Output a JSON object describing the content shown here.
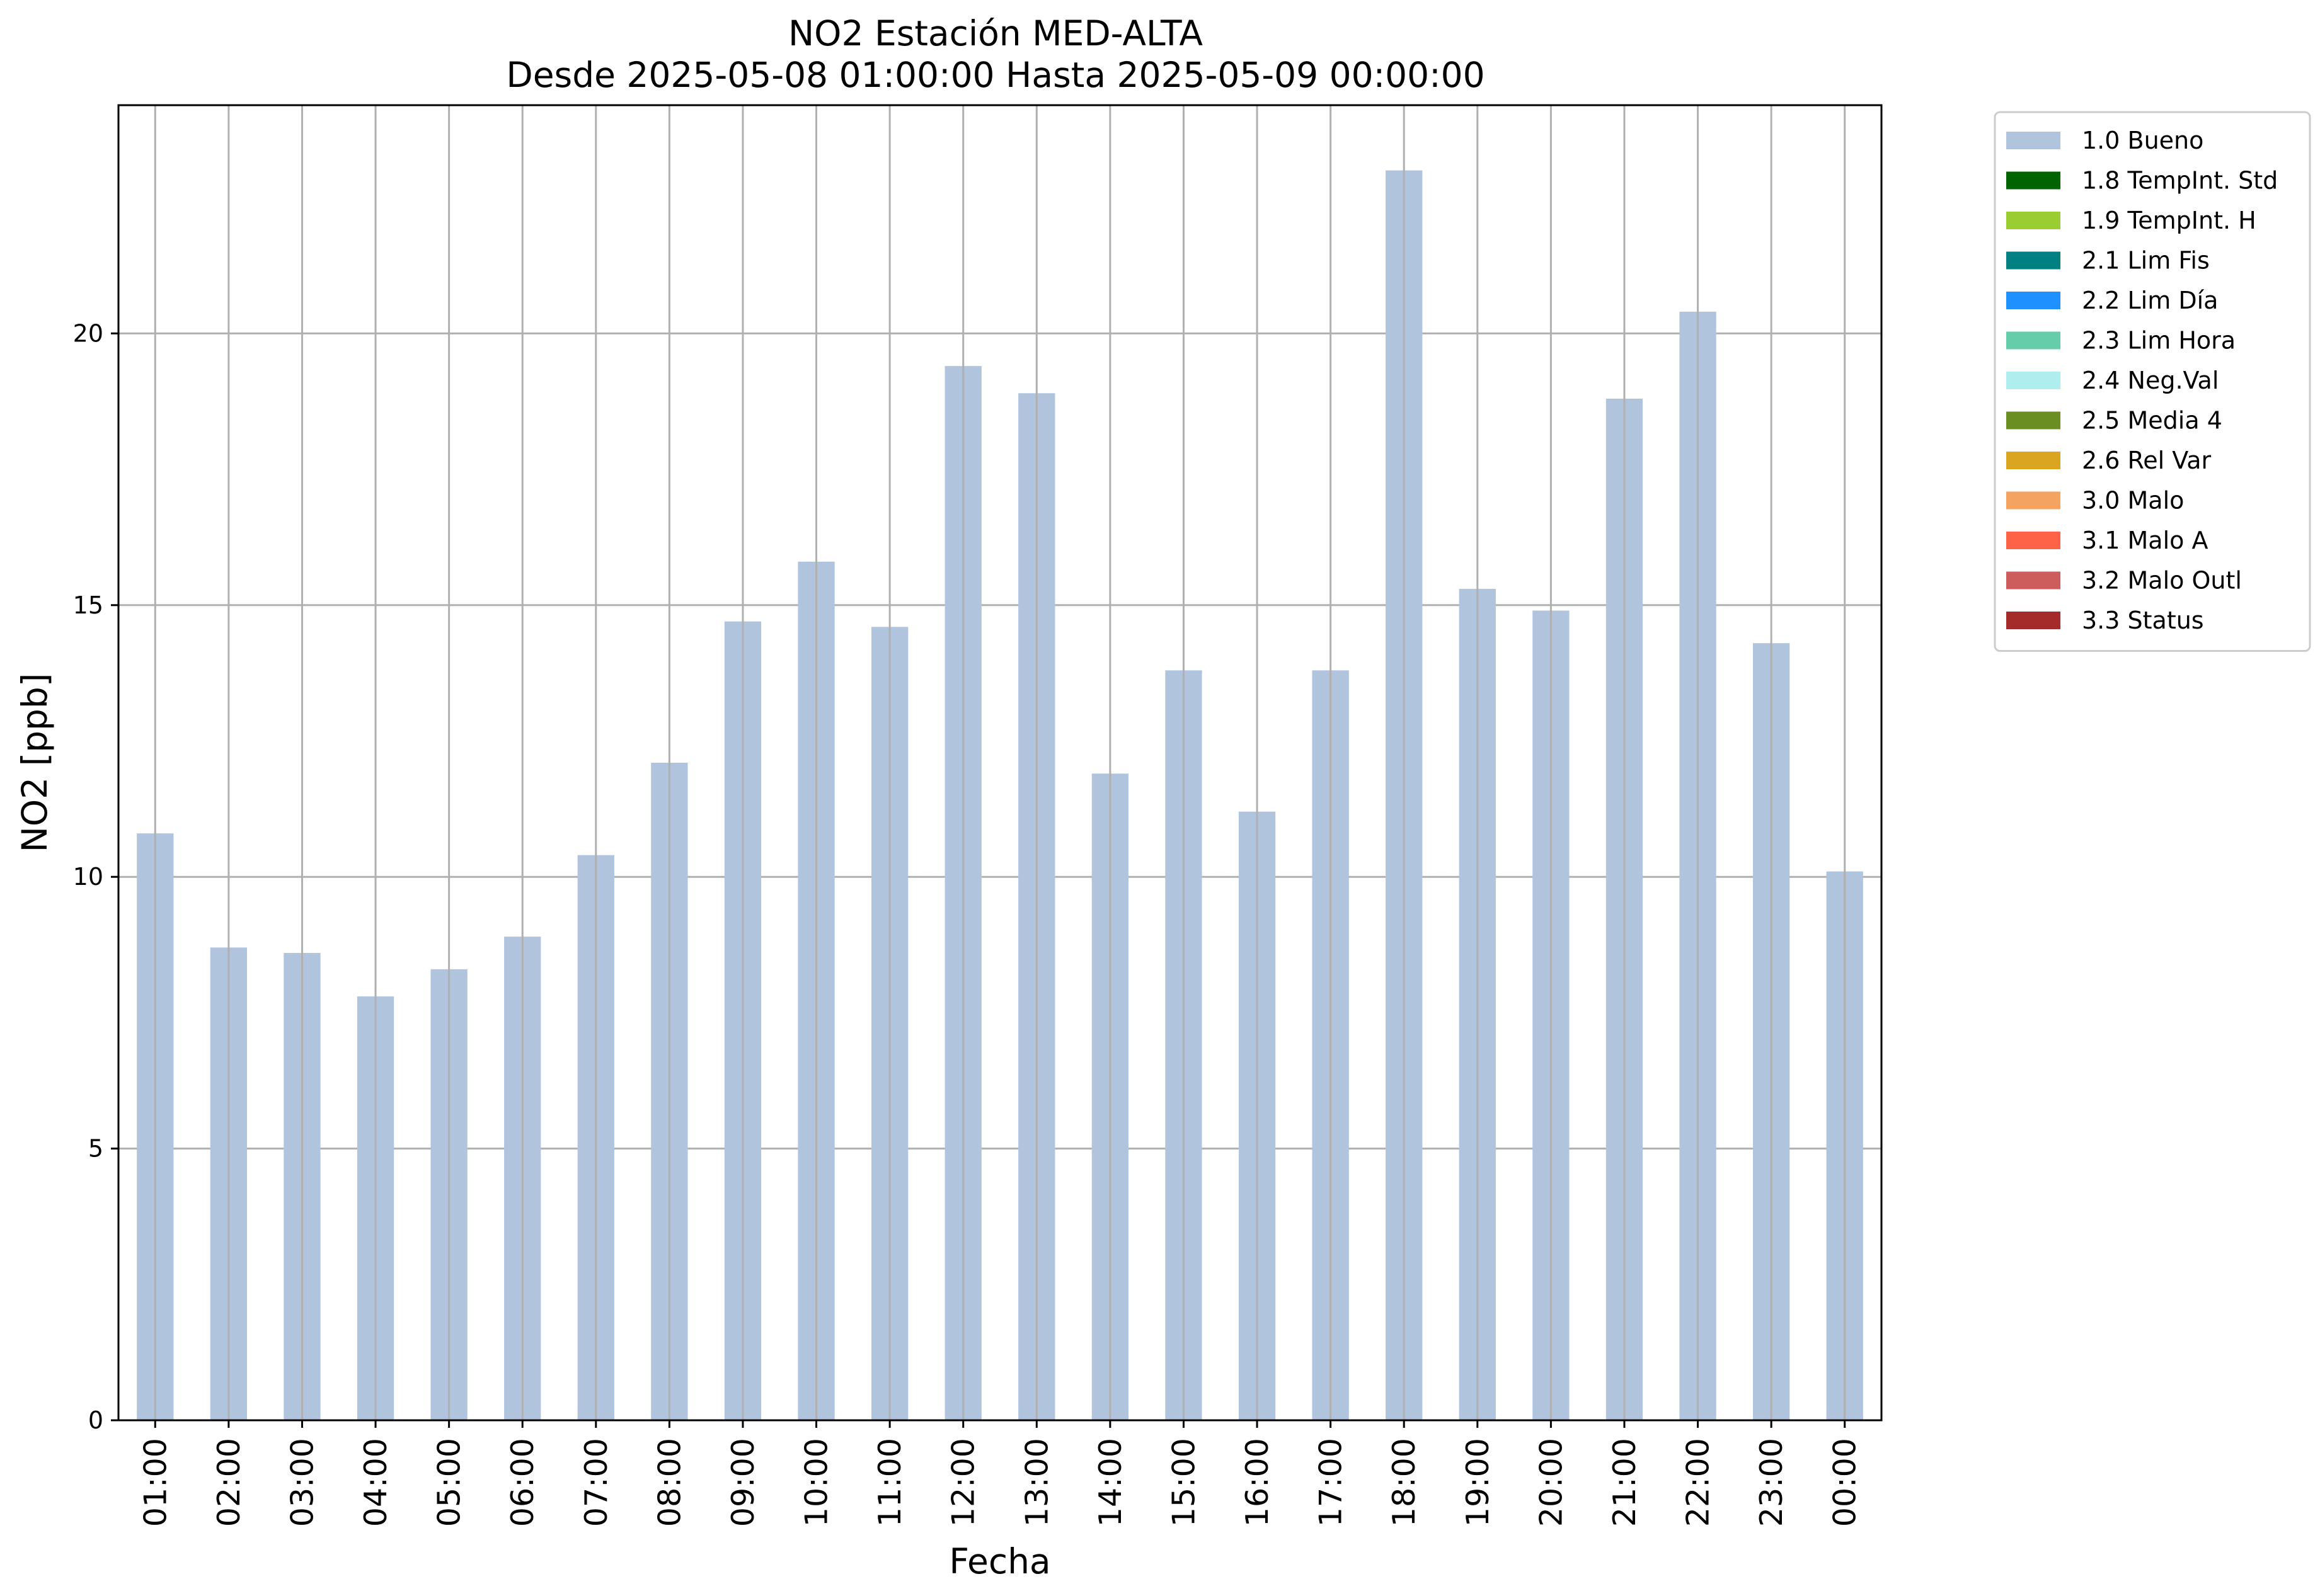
{
  "chart_data": {
    "type": "bar",
    "title": "NO2 Estación MED-ALTA",
    "subtitle": "Desde 2025-05-08 01:00:00 Hasta 2025-05-09 00:00:00",
    "xlabel": "Fecha",
    "ylabel": "NO2 [ppb]",
    "ylim": [
      0,
      24.2
    ],
    "y_ticks": [
      "0",
      "5",
      "10",
      "15",
      "20"
    ],
    "grid": true,
    "legend_position": "outside-right",
    "categories": [
      "01:00",
      "02:00",
      "03:00",
      "04:00",
      "05:00",
      "06:00",
      "07:00",
      "08:00",
      "09:00",
      "10:00",
      "11:00",
      "12:00",
      "13:00",
      "14:00",
      "15:00",
      "16:00",
      "17:00",
      "18:00",
      "19:00",
      "20:00",
      "21:00",
      "22:00",
      "23:00",
      "00:00"
    ],
    "series": [
      {
        "name": "1.0 Bueno",
        "color": "#b0c4de",
        "values": [
          10.8,
          8.7,
          8.6,
          7.8,
          8.3,
          8.9,
          10.4,
          12.1,
          14.7,
          15.8,
          14.6,
          19.4,
          18.9,
          11.9,
          13.8,
          11.2,
          13.8,
          23.0,
          15.3,
          14.9,
          18.8,
          20.4,
          14.3,
          10.1
        ]
      }
    ],
    "legend": [
      {
        "label": "1.0 Bueno",
        "color": "#b0c4de"
      },
      {
        "label": "1.8 TempInt. Std",
        "color": "#006400"
      },
      {
        "label": "1.9 TempInt. H",
        "color": "#9acd32"
      },
      {
        "label": "2.1 Lim Fis",
        "color": "#008080"
      },
      {
        "label": "2.2 Lim Día",
        "color": "#1e90ff"
      },
      {
        "label": "2.3 Lim Hora",
        "color": "#66cdaa"
      },
      {
        "label": "2.4 Neg.Val",
        "color": "#afeeee"
      },
      {
        "label": "2.5 Media 4",
        "color": "#6b8e23"
      },
      {
        "label": "2.6 Rel Var",
        "color": "#daa520"
      },
      {
        "label": "3.0 Malo",
        "color": "#f4a460"
      },
      {
        "label": "3.1 Malo A",
        "color": "#ff6347"
      },
      {
        "label": "3.2 Malo Outl",
        "color": "#cd5c5c"
      },
      {
        "label": "3.3 Status",
        "color": "#a52a2a"
      }
    ]
  }
}
